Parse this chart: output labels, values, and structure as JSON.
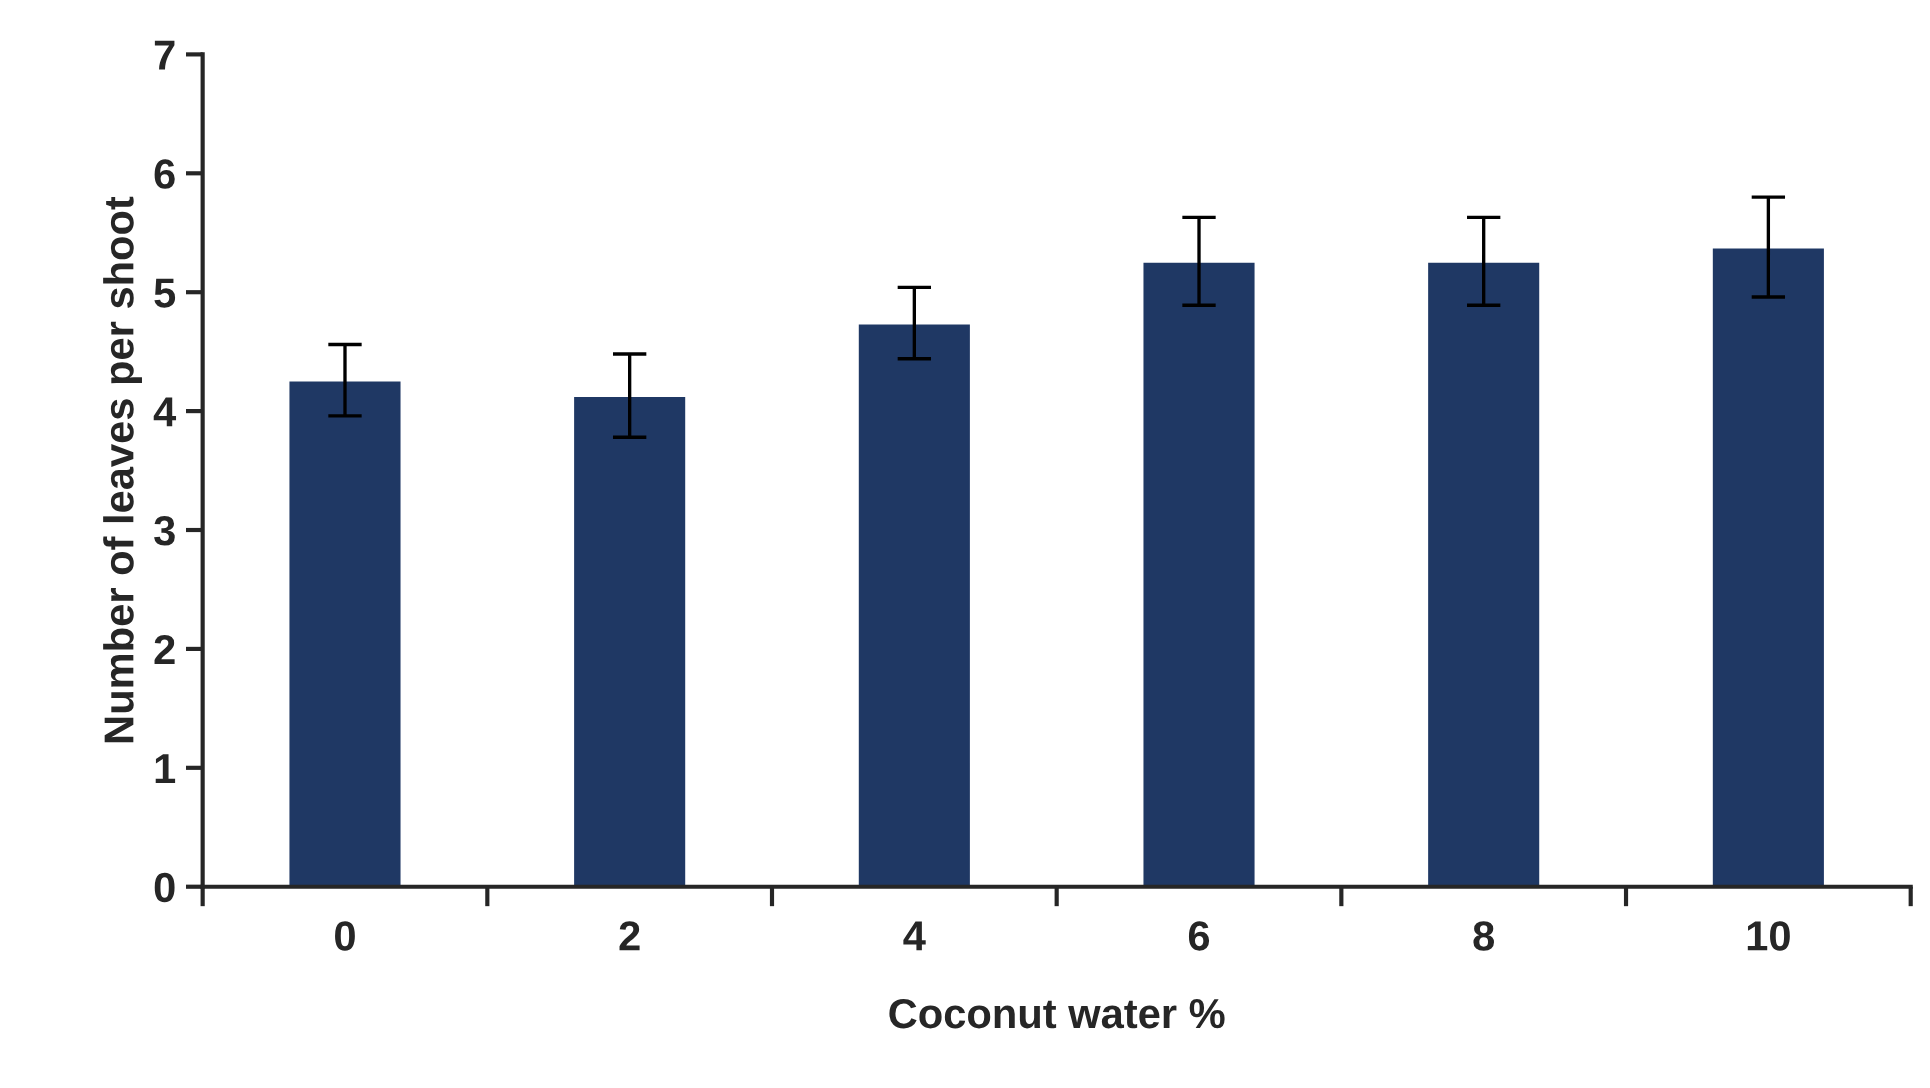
{
  "chart_data": {
    "type": "bar",
    "xlabel": "Coconut water %",
    "ylabel": "Number of leaves per shoot",
    "categories": [
      "0",
      "2",
      "4",
      "6",
      "8",
      "10"
    ],
    "values": [
      4.26,
      4.13,
      4.74,
      5.26,
      5.26,
      5.38
    ],
    "errors": [
      0.3,
      0.35,
      0.3,
      0.37,
      0.37,
      0.42
    ],
    "color": "#1f3864",
    "ylim": [
      0,
      7
    ],
    "yticks": [
      0,
      1,
      2,
      3,
      4,
      5,
      6,
      7
    ],
    "grid": false,
    "legend": false
  }
}
